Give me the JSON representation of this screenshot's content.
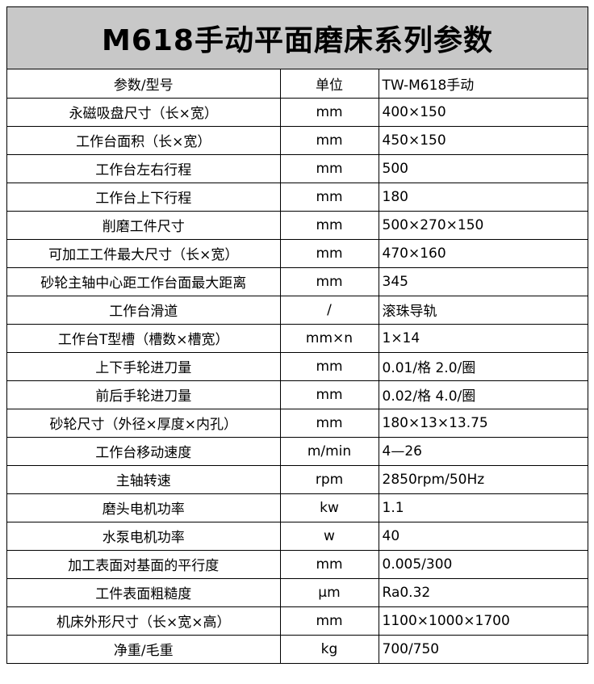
{
  "title": "M618手动平面磨床系列参数",
  "header": {
    "param": "参数/型号",
    "unit": "单位",
    "model": "TW-M618手动"
  },
  "rows": [
    {
      "param": "永磁吸盘尺寸（长×宽）",
      "unit": "mm",
      "value": "400×150"
    },
    {
      "param": "工作台面积（长×宽）",
      "unit": "mm",
      "value": "450×150"
    },
    {
      "param": "工作台左右行程",
      "unit": "mm",
      "value": "500"
    },
    {
      "param": "工作台上下行程",
      "unit": "mm",
      "value": "180"
    },
    {
      "param": "削磨工件尺寸",
      "unit": "mm",
      "value": "500×270×150"
    },
    {
      "param": "可加工工件最大尺寸（长×宽）",
      "unit": "mm",
      "value": "470×160"
    },
    {
      "param": "砂轮主轴中心距工作台面最大距离",
      "unit": "mm",
      "value": "345"
    },
    {
      "param": "工作台滑道",
      "unit": "/",
      "value": "滚珠导轨"
    },
    {
      "param": "工作台T型槽（槽数×槽宽）",
      "unit": "mm×n",
      "value": "1×14"
    },
    {
      "param": "上下手轮进刀量",
      "unit": "mm",
      "value": "0.01/格 2.0/圈"
    },
    {
      "param": "前后手轮进刀量",
      "unit": "mm",
      "value": "0.02/格 4.0/圈"
    },
    {
      "param": "砂轮尺寸（外径×厚度×内孔）",
      "unit": "mm",
      "value": "180×13×13.75"
    },
    {
      "param": "工作台移动速度",
      "unit": "m/min",
      "value": "4—26"
    },
    {
      "param": "主轴转速",
      "unit": "rpm",
      "value": "2850rpm/50Hz"
    },
    {
      "param": "磨头电机功率",
      "unit": "kw",
      "value": "1.1"
    },
    {
      "param": "水泵电机功率",
      "unit": "w",
      "value": "40"
    },
    {
      "param": "加工表面对基面的平行度",
      "unit": "mm",
      "value": "0.005/300"
    },
    {
      "param": "工件表面粗糙度",
      "unit": "μm",
      "value": "Ra0.32"
    },
    {
      "param": "机床外形尺寸（长×宽×高）",
      "unit": "mm",
      "value": "1100×1000×1700"
    },
    {
      "param": "净重/毛重",
      "unit": "kg",
      "value": "700/750"
    }
  ]
}
